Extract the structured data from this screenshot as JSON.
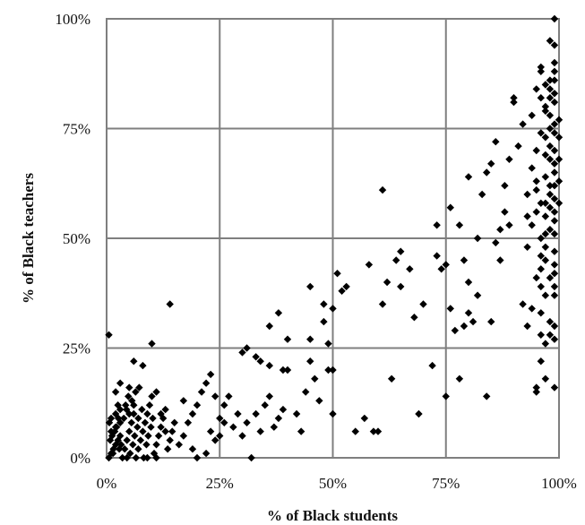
{
  "chart_data": {
    "type": "scatter",
    "title": "",
    "xlabel": "% of Black students",
    "ylabel": "% of Black teachers",
    "xlim": [
      0,
      100
    ],
    "ylim": [
      0,
      100
    ],
    "x_ticks": [
      "0%",
      "25%",
      "50%",
      "75%",
      "100%"
    ],
    "y_ticks": [
      "0%",
      "25%",
      "50%",
      "75%",
      "100%"
    ],
    "grid": true,
    "legend": "none",
    "marker": "diamond",
    "marker_color": "#000000",
    "points": [
      [
        0.5,
        0
      ],
      [
        1,
        1
      ],
      [
        1.5,
        2
      ],
      [
        2,
        3
      ],
      [
        2.5,
        4
      ],
      [
        3,
        5
      ],
      [
        1,
        6
      ],
      [
        2,
        7
      ],
      [
        3,
        8
      ],
      [
        1,
        9
      ],
      [
        2,
        10
      ],
      [
        0.8,
        4
      ],
      [
        1.2,
        5
      ],
      [
        1.8,
        6
      ],
      [
        2.2,
        7
      ],
      [
        2.8,
        2
      ],
      [
        3.2,
        3
      ],
      [
        0.6,
        8
      ],
      [
        1.4,
        1
      ],
      [
        2.6,
        9
      ],
      [
        3.5,
        0
      ],
      [
        4,
        2
      ],
      [
        4.5,
        4
      ],
      [
        5,
        6
      ],
      [
        5.5,
        8
      ],
      [
        6,
        10
      ],
      [
        4.2,
        12
      ],
      [
        4.8,
        14
      ],
      [
        5.2,
        1
      ],
      [
        5.8,
        3
      ],
      [
        6.2,
        5
      ],
      [
        6.8,
        7
      ],
      [
        3.8,
        9
      ],
      [
        4.4,
        11
      ],
      [
        5.6,
        13
      ],
      [
        6.4,
        15
      ],
      [
        7,
        2
      ],
      [
        7.5,
        4
      ],
      [
        8,
        6
      ],
      [
        8.5,
        8
      ],
      [
        9,
        10
      ],
      [
        9.5,
        12
      ],
      [
        10,
        14
      ],
      [
        10.5,
        1
      ],
      [
        11,
        3
      ],
      [
        11.5,
        5
      ],
      [
        12,
        7
      ],
      [
        12.5,
        9
      ],
      [
        13,
        11
      ],
      [
        13.5,
        2
      ],
      [
        14,
        4
      ],
      [
        14.5,
        6
      ],
      [
        15,
        8
      ],
      [
        7.2,
        16
      ],
      [
        7.8,
        11
      ],
      [
        8.2,
        0
      ],
      [
        8.8,
        3
      ],
      [
        9.2,
        5
      ],
      [
        9.8,
        7
      ],
      [
        10.2,
        9
      ],
      [
        0.5,
        28
      ],
      [
        6,
        22
      ],
      [
        8,
        21
      ],
      [
        10,
        26
      ],
      [
        14,
        35
      ],
      [
        2,
        15
      ],
      [
        3,
        17
      ],
      [
        5,
        16
      ],
      [
        6,
        12
      ],
      [
        11,
        15
      ],
      [
        12,
        10
      ],
      [
        13,
        6
      ],
      [
        4.5,
        0
      ],
      [
        6.5,
        0
      ],
      [
        9,
        0
      ],
      [
        11,
        0
      ],
      [
        3,
        11
      ],
      [
        5,
        10
      ],
      [
        7,
        9
      ],
      [
        2.5,
        12
      ],
      [
        16,
        3
      ],
      [
        17,
        5
      ],
      [
        18,
        8
      ],
      [
        19,
        10
      ],
      [
        20,
        12
      ],
      [
        21,
        15
      ],
      [
        22,
        17
      ],
      [
        23,
        19
      ],
      [
        17,
        13
      ],
      [
        19,
        2
      ],
      [
        20,
        0
      ],
      [
        22,
        1
      ],
      [
        23,
        6
      ],
      [
        24,
        4
      ],
      [
        25,
        9
      ],
      [
        26,
        12
      ],
      [
        27,
        14
      ],
      [
        24,
        14
      ],
      [
        25,
        5
      ],
      [
        26,
        8
      ],
      [
        28,
        7
      ],
      [
        29,
        10
      ],
      [
        30,
        5
      ],
      [
        31,
        8
      ],
      [
        32,
        0
      ],
      [
        33,
        10
      ],
      [
        34,
        6
      ],
      [
        35,
        12
      ],
      [
        36,
        14
      ],
      [
        37,
        7
      ],
      [
        38,
        9
      ],
      [
        39,
        11
      ],
      [
        30,
        24
      ],
      [
        31,
        25
      ],
      [
        33,
        23
      ],
      [
        34,
        22
      ],
      [
        36,
        21
      ],
      [
        36,
        30
      ],
      [
        38,
        33
      ],
      [
        39,
        20
      ],
      [
        40,
        27
      ],
      [
        40,
        20
      ],
      [
        42,
        10
      ],
      [
        43,
        6
      ],
      [
        44,
        15
      ],
      [
        45,
        22
      ],
      [
        45,
        27
      ],
      [
        45,
        39
      ],
      [
        46,
        18
      ],
      [
        47,
        13
      ],
      [
        48,
        31
      ],
      [
        48,
        35
      ],
      [
        49,
        26
      ],
      [
        49,
        20
      ],
      [
        50,
        34
      ],
      [
        50,
        20
      ],
      [
        50,
        10
      ],
      [
        51,
        42
      ],
      [
        52,
        38
      ],
      [
        53,
        39
      ],
      [
        55,
        6
      ],
      [
        57,
        9
      ],
      [
        58,
        44
      ],
      [
        59,
        6
      ],
      [
        60,
        6
      ],
      [
        61,
        61
      ],
      [
        61,
        35
      ],
      [
        62,
        40
      ],
      [
        63,
        18
      ],
      [
        64,
        45
      ],
      [
        65,
        47
      ],
      [
        65,
        39
      ],
      [
        67,
        43
      ],
      [
        68,
        32
      ],
      [
        69,
        10
      ],
      [
        70,
        35
      ],
      [
        72,
        21
      ],
      [
        73,
        53
      ],
      [
        73,
        46
      ],
      [
        74,
        43
      ],
      [
        75,
        14
      ],
      [
        75,
        44
      ],
      [
        76,
        57
      ],
      [
        76,
        34
      ],
      [
        77,
        29
      ],
      [
        78,
        53
      ],
      [
        78,
        18
      ],
      [
        79,
        45
      ],
      [
        79,
        30
      ],
      [
        80,
        33
      ],
      [
        80,
        40
      ],
      [
        80,
        64
      ],
      [
        81,
        31
      ],
      [
        82,
        37
      ],
      [
        82,
        50
      ],
      [
        83,
        60
      ],
      [
        84,
        65
      ],
      [
        84,
        14
      ],
      [
        85,
        31
      ],
      [
        85,
        67
      ],
      [
        86,
        49
      ],
      [
        86,
        72
      ],
      [
        87,
        45
      ],
      [
        87,
        52
      ],
      [
        88,
        56
      ],
      [
        88,
        62
      ],
      [
        89,
        68
      ],
      [
        89,
        53
      ],
      [
        90,
        82
      ],
      [
        90,
        81
      ],
      [
        91,
        71
      ],
      [
        92,
        76
      ],
      [
        92,
        35
      ],
      [
        93,
        30
      ],
      [
        93,
        60
      ],
      [
        94,
        53
      ],
      [
        95,
        16
      ],
      [
        95,
        15
      ],
      [
        96,
        89
      ],
      [
        96,
        88
      ],
      [
        93,
        55
      ],
      [
        93,
        48
      ],
      [
        94,
        66
      ],
      [
        94,
        78
      ],
      [
        94,
        34
      ],
      [
        95,
        56
      ],
      [
        95,
        63
      ],
      [
        95,
        70
      ],
      [
        96,
        22
      ],
      [
        96,
        28
      ],
      [
        96,
        33
      ],
      [
        96,
        39
      ],
      [
        96,
        43
      ],
      [
        96,
        50
      ],
      [
        97,
        58
      ],
      [
        97,
        64
      ],
      [
        97,
        73
      ],
      [
        97,
        80
      ],
      [
        97,
        85
      ],
      [
        97,
        18
      ],
      [
        97,
        26
      ],
      [
        97,
        37
      ],
      [
        97,
        45
      ],
      [
        97,
        48
      ],
      [
        97,
        55
      ],
      [
        98,
        60
      ],
      [
        98,
        68
      ],
      [
        98,
        75
      ],
      [
        98,
        82
      ],
      [
        98,
        86
      ],
      [
        98,
        28
      ],
      [
        98,
        31
      ],
      [
        98,
        41
      ],
      [
        98,
        52
      ],
      [
        98,
        57
      ],
      [
        98,
        62
      ],
      [
        98,
        71
      ],
      [
        98,
        78
      ],
      [
        98,
        84
      ],
      [
        98,
        95
      ],
      [
        99,
        100
      ],
      [
        99,
        94
      ],
      [
        99,
        88
      ],
      [
        99,
        81
      ],
      [
        99,
        76
      ],
      [
        99,
        70
      ],
      [
        99,
        65
      ],
      [
        99,
        59
      ],
      [
        99,
        54
      ],
      [
        99,
        47
      ],
      [
        99,
        42
      ],
      [
        99,
        37
      ],
      [
        99,
        30
      ],
      [
        99,
        27
      ],
      [
        99,
        16
      ],
      [
        99,
        90
      ],
      [
        99,
        86
      ],
      [
        99,
        83
      ],
      [
        99,
        74
      ],
      [
        99,
        67
      ],
      [
        99,
        62
      ],
      [
        99,
        56
      ],
      [
        99,
        51
      ],
      [
        99,
        44
      ],
      [
        99,
        39
      ],
      [
        100,
        73
      ],
      [
        100,
        68
      ],
      [
        100,
        63
      ],
      [
        100,
        58
      ],
      [
        100,
        77
      ],
      [
        95,
        84
      ],
      [
        96,
        82
      ],
      [
        97,
        79
      ],
      [
        97,
        69
      ],
      [
        96,
        74
      ],
      [
        95,
        61
      ],
      [
        96,
        58
      ],
      [
        97,
        51
      ],
      [
        96,
        46
      ],
      [
        95,
        41
      ]
    ]
  }
}
